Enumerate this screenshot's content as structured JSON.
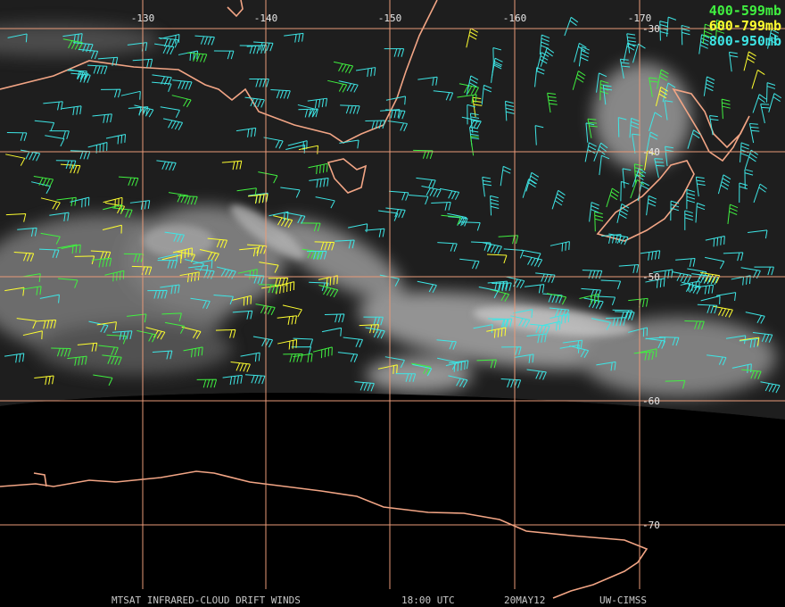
{
  "map": {
    "longitude_labels": [
      "-130",
      "-140",
      "-150",
      "-160",
      "-170"
    ],
    "latitude_labels": [
      "-30",
      "-40",
      "-50",
      "-60",
      "-70"
    ]
  },
  "legend": [
    "400-599mb",
    "600-799mb",
    "800-950mb"
  ],
  "footer": [
    "MTSAT INFRARED-CLOUD DRIFT WINDS",
    "18:00 UTC",
    "20MAY12",
    "UW-CIMSS"
  ]
}
